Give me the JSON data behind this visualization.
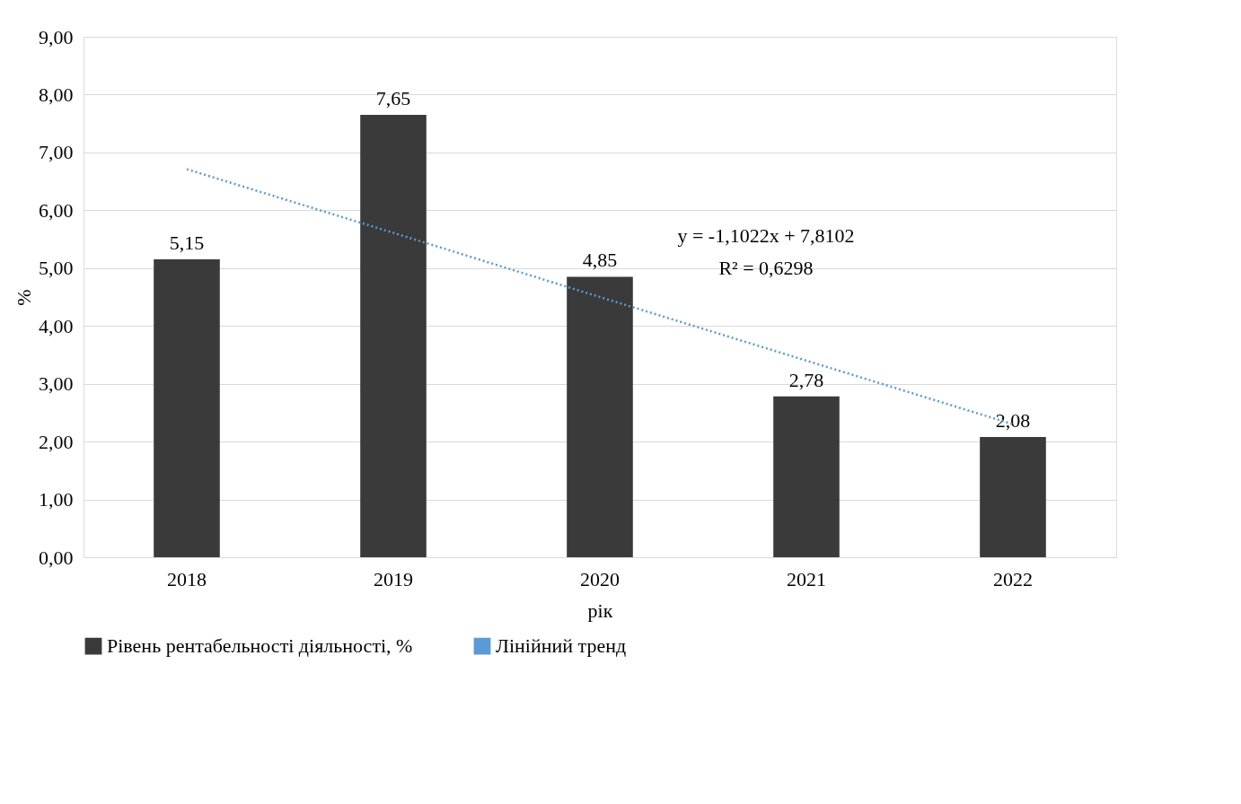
{
  "chart_data": {
    "type": "bar",
    "xlabel": "рік",
    "ylabel": "%",
    "categories": [
      "2018",
      "2019",
      "2020",
      "2021",
      "2022"
    ],
    "series": [
      {
        "name": "Рівень рентабельності діяльності,  %",
        "color": "#3a3a3a",
        "values": [
          5.15,
          7.65,
          4.85,
          2.78,
          2.08
        ],
        "value_labels": [
          "5,15",
          "7,65",
          "4,85",
          "2,78",
          "2,08"
        ]
      },
      {
        "name": "Лінійний тренд",
        "type": "line",
        "line_style": "dotted",
        "color": "#5b9bd5",
        "values": [
          6.71,
          5.61,
          4.5,
          3.4,
          2.3
        ]
      }
    ],
    "ylim": [
      0,
      9
    ],
    "yticks": [
      {
        "value": 0,
        "label": "0,00"
      },
      {
        "value": 1,
        "label": "1,00"
      },
      {
        "value": 2,
        "label": "2,00"
      },
      {
        "value": 3,
        "label": "3,00"
      },
      {
        "value": 4,
        "label": "4,00"
      },
      {
        "value": 5,
        "label": "5,00"
      },
      {
        "value": 6,
        "label": "6,00"
      },
      {
        "value": 7,
        "label": "7,00"
      },
      {
        "value": 8,
        "label": "8,00"
      },
      {
        "value": 9,
        "label": "9,00"
      }
    ],
    "annotations": [
      "y = -1,1022x + 7,8102",
      "R² = 0,6298"
    ],
    "grid": "y",
    "legend": "bottom"
  }
}
